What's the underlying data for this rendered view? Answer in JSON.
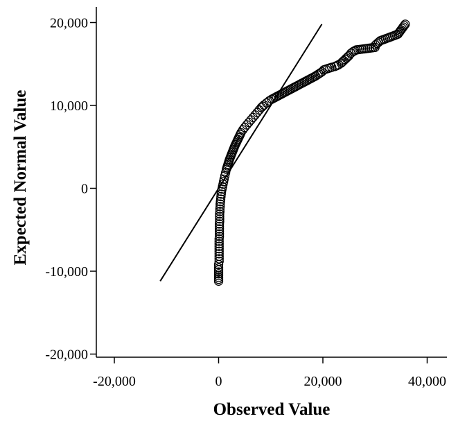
{
  "chart_data": {
    "type": "scatter",
    "title": "",
    "xlabel": "Observed Value",
    "ylabel": "Expected Normal Value",
    "xlim": [
      -23000,
      43000
    ],
    "ylim": [
      -20000,
      22000
    ],
    "x_ticks": [
      -20000,
      0,
      20000,
      40000
    ],
    "x_tick_labels": [
      "-20,000",
      "0",
      "20,000",
      "40,000"
    ],
    "y_ticks": [
      -20000,
      -10000,
      0,
      10000,
      20000
    ],
    "y_tick_labels": [
      "-20,000",
      "-10,000",
      "0",
      "10,000",
      "20,000"
    ],
    "grid": false,
    "reference_line": {
      "x": [
        -11200,
        19800
      ],
      "y": [
        -11200,
        19800
      ]
    },
    "marker_color": "#000000",
    "marker": "open-circle",
    "points": [
      [
        0,
        -11200
      ],
      [
        0,
        -10100
      ],
      [
        0,
        -9600
      ],
      [
        0,
        -9200
      ],
      [
        100,
        -8800
      ],
      [
        100,
        -8500
      ],
      [
        100,
        -8200
      ],
      [
        100,
        -7900
      ],
      [
        100,
        -7600
      ],
      [
        100,
        -7300
      ],
      [
        100,
        -7000
      ],
      [
        100,
        -6700
      ],
      [
        100,
        -6400
      ],
      [
        100,
        -6100
      ],
      [
        150,
        -5800
      ],
      [
        150,
        -5500
      ],
      [
        150,
        -5200
      ],
      [
        150,
        -4900
      ],
      [
        150,
        -4600
      ],
      [
        150,
        -4300
      ],
      [
        200,
        -4000
      ],
      [
        200,
        -3700
      ],
      [
        200,
        -3400
      ],
      [
        200,
        -3100
      ],
      [
        250,
        -2800
      ],
      [
        250,
        -2500
      ],
      [
        300,
        -2200
      ],
      [
        300,
        -1900
      ],
      [
        350,
        -1600
      ],
      [
        400,
        -1300
      ],
      [
        450,
        -1000
      ],
      [
        500,
        -700
      ],
      [
        550,
        -400
      ],
      [
        650,
        -100
      ],
      [
        750,
        200
      ],
      [
        850,
        500
      ],
      [
        950,
        800
      ],
      [
        1050,
        1100
      ],
      [
        1200,
        1500
      ],
      [
        1350,
        1900
      ],
      [
        1500,
        2300
      ],
      [
        1700,
        2700
      ],
      [
        1900,
        3100
      ],
      [
        2100,
        3500
      ],
      [
        2350,
        3900
      ],
      [
        2600,
        4300
      ],
      [
        2850,
        4700
      ],
      [
        3100,
        5100
      ],
      [
        3400,
        5500
      ],
      [
        3700,
        5900
      ],
      [
        4000,
        6300
      ],
      [
        4300,
        6700
      ],
      [
        4650,
        7050
      ],
      [
        5000,
        7350
      ],
      [
        5400,
        7650
      ],
      [
        5800,
        7950
      ],
      [
        6200,
        8250
      ],
      [
        6600,
        8550
      ],
      [
        7000,
        8850
      ],
      [
        7400,
        9150
      ],
      [
        7800,
        9450
      ],
      [
        8200,
        9750
      ],
      [
        8700,
        10050
      ],
      [
        9200,
        10300
      ],
      [
        9700,
        10550
      ],
      [
        10200,
        10750
      ],
      [
        10800,
        10950
      ],
      [
        11400,
        11150
      ],
      [
        12000,
        11350
      ],
      [
        12600,
        11550
      ],
      [
        13200,
        11750
      ],
      [
        13800,
        11950
      ],
      [
        14400,
        12150
      ],
      [
        15000,
        12350
      ],
      [
        15600,
        12550
      ],
      [
        16200,
        12750
      ],
      [
        16800,
        12950
      ],
      [
        17400,
        13150
      ],
      [
        18000,
        13350
      ],
      [
        18600,
        13550
      ],
      [
        19200,
        13800
      ],
      [
        19800,
        14050
      ],
      [
        20200,
        14300
      ],
      [
        21700,
        14600
      ],
      [
        22300,
        14700
      ],
      [
        23000,
        14900
      ],
      [
        23500,
        15100
      ],
      [
        24000,
        15400
      ],
      [
        24500,
        15700
      ],
      [
        25000,
        16000
      ],
      [
        25400,
        16300
      ],
      [
        25800,
        16500
      ],
      [
        26400,
        16700
      ],
      [
        30000,
        17000
      ],
      [
        30100,
        17300
      ],
      [
        31000,
        17800
      ],
      [
        34400,
        18600
      ],
      [
        35800,
        19800
      ]
    ]
  }
}
